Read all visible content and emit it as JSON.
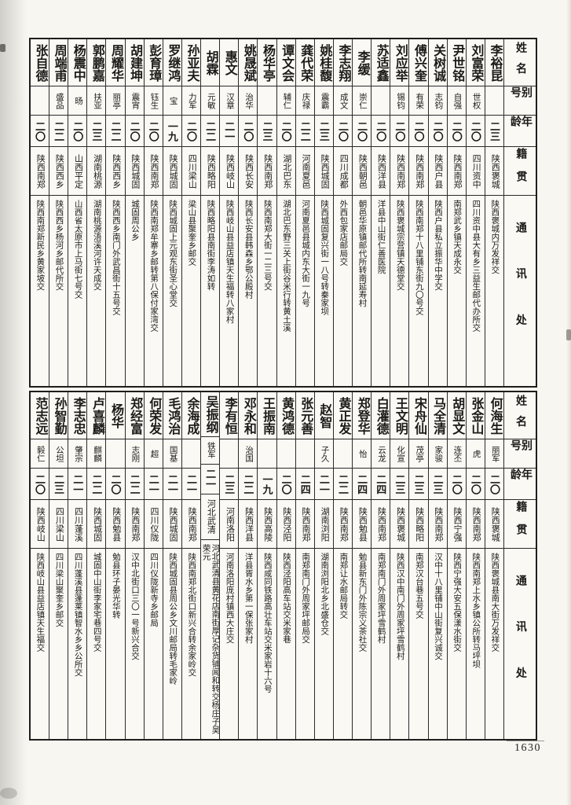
{
  "page": {
    "number": "1630"
  },
  "headers": {
    "name": "姓名",
    "alias": "别号",
    "age": "年龄",
    "origin": "籍贯",
    "address": "通讯处"
  },
  "tables": [
    {
      "entries": [
        {
          "name": "李裕昆",
          "alias": "",
          "age": "二三",
          "origin": "陕西褒城",
          "address": "陕西褒城内万发祥交"
        },
        {
          "name": "刘富荣",
          "alias": "世权",
          "age": "二〇",
          "origin": "四川资中",
          "address": "四川资中县大有乡三益生邮代办所交"
        },
        {
          "name": "尹世铭",
          "alias": "自强",
          "age": "二〇",
          "origin": "陕西南郑",
          "address": "南郑武乡镇天成永交"
        },
        {
          "name": "关树诚",
          "alias": "志钧",
          "age": "二〇",
          "origin": "陕西户县",
          "address": "陕西户县私立振华中学交"
        },
        {
          "name": "傅兴奎",
          "alias": "有荣",
          "age": "二〇",
          "origin": "陕西南郑",
          "address": "陕西南郑十八里铺东街九〇号交"
        },
        {
          "name": "刘应举",
          "alias": "锡钧",
          "age": "二〇",
          "origin": "陕西南郑",
          "address": "陕西褒城宗营镇天德堂交"
        },
        {
          "name": "苏适鑫",
          "alias": "",
          "age": "二〇",
          "origin": "陕西洋县",
          "address": "洋县中山街仁善医院"
        },
        {
          "name": "李缓",
          "alias": "崇仁",
          "age": "二〇",
          "origin": "陕西朝邑",
          "address": "朝邑华原镇邮代所转南延寿村"
        },
        {
          "name": "李志翔",
          "alias": "成文",
          "age": "二〇",
          "origin": "四川成都",
          "address": "外西包家店邮局交"
        },
        {
          "name": "姚桂馥",
          "alias": "震霸",
          "age": "二三",
          "origin": "陕西城固",
          "address": "陕西城固复兴街一八号转秦家坝"
        },
        {
          "name": "龚代荣",
          "alias": "庆禄",
          "age": "二二",
          "origin": "河南夏邑",
          "address": "河南夏邑县城内东大街一九号"
        },
        {
          "name": "谭文会",
          "alias": "辅仁",
          "age": "二〇",
          "origin": "湖北巴东",
          "address": "湖北巴东野三关上街谷米行转黄土溪"
        },
        {
          "name": "杨华亭",
          "alias": "",
          "age": "二三",
          "origin": "陕西南郑",
          "address": "陕西南郑大街一二三号交"
        },
        {
          "name": "姚晟斌",
          "alias": "治华",
          "age": "二〇",
          "origin": "陕西长安",
          "address": "陕西长安县韩森乡鄂公殿村"
        },
        {
          "name": "惠文",
          "alias": "汉章",
          "age": "二一",
          "origin": "陕西岐山",
          "address": "陕西岐山县益店镇天生福转八家村"
        },
        {
          "name": "胡霖",
          "alias": "元敏",
          "age": "二二",
          "origin": "陕西略阳",
          "address": "陕西略阳县南街李涛如转"
        },
        {
          "name": "孙亚夫",
          "alias": "力军",
          "age": "二〇",
          "origin": "四川梁山",
          "address": "梁山县聚奎乡邮交"
        },
        {
          "name": "罗继鸿",
          "alias": "宝",
          "age": "一九",
          "origin": "陕西城固",
          "address": "陕西城固上元观东街圣心堂交"
        },
        {
          "name": "彭育璋",
          "alias": "钰生",
          "age": "二〇",
          "origin": "陕西南郑",
          "address": "陕西南郑牟寨乡邮转第八保付家湾交"
        },
        {
          "name": "胡建坤",
          "alias": "震宵",
          "age": "二〇",
          "origin": "陕西城固",
          "address": "城固周公乡"
        },
        {
          "name": "周耀华",
          "alias": "丽亭",
          "age": "二二",
          "origin": "陕西西乡",
          "address": "陕西西乡南门外武昌街十五号交"
        },
        {
          "name": "郭鹏嘉",
          "alias": "扶亚",
          "age": "二三",
          "origin": "湖南桃源",
          "address": "湖南桃源浯溪河许天成交"
        },
        {
          "name": "杨震中",
          "alias": "旸",
          "age": "二〇",
          "origin": "山西平定",
          "address": "山西省太原市上马街七号交"
        },
        {
          "name": "周端甫",
          "alias": "盛品",
          "age": "二二",
          "origin": "陕西西乡",
          "address": "陕西西乡杨河乡邮代所交"
        },
        {
          "name": "张自德",
          "alias": "",
          "age": "二〇",
          "origin": "陕西南郑",
          "address": "陕西南郑新民乡黄家坡交"
        }
      ]
    },
    {
      "entries": [
        {
          "name": "何海生",
          "alias": "丽军",
          "age": "二〇",
          "origin": "陕西褒城",
          "address": "陕西褒城县南大街万发祥交"
        },
        {
          "name": "张金山",
          "alias": "虎",
          "age": "二〇",
          "origin": "陕西南郑",
          "address": "陕西南郑上水乡镇公所转马坪坝"
        },
        {
          "name": "胡显文",
          "alias": "连丕",
          "age": "二〇",
          "origin": "陕西宁强",
          "address": "陕西宁强大安五保漾水街交"
        },
        {
          "name": "马全清",
          "alias": "家骏",
          "age": "二三",
          "origin": "陕西南郑",
          "address": "汉中十八里铺中山街复兴诚交"
        },
        {
          "name": "宋舟仙",
          "alias": "茂亭",
          "age": "二三",
          "origin": "陕西略阳",
          "address": "南郑汉台巷五号交"
        },
        {
          "name": "王文明",
          "alias": "化宣",
          "age": "二三",
          "origin": "陕西褒城",
          "address": "陕西汉中南门外周家坪雪鹤村"
        },
        {
          "name": "白灌德",
          "alias": "云龙",
          "age": "二四",
          "origin": "陕西南郑",
          "address": "南郑南门外周家坪雪鹤村"
        },
        {
          "name": "郑登华",
          "alias": "怡",
          "age": "二四",
          "origin": "陕西勉县",
          "address": "勉县新东门外陈宗义茶社交"
        },
        {
          "name": "黄正发",
          "alias": "",
          "age": "二二",
          "origin": "陕西南郑",
          "address": "南郑让水邮局转交"
        },
        {
          "name": "赵智",
          "alias": "子久",
          "age": "二一",
          "origin": "湖南浏阳",
          "address": "湖南浏阳北乡北盛仓交"
        },
        {
          "name": "张元善",
          "alias": "",
          "age": "二四",
          "origin": "陕西南郑",
          "address": "南郑南门外周家坪邮局交"
        },
        {
          "name": "黄鸿德",
          "alias": "",
          "age": "二〇",
          "origin": "陕西泾阳",
          "address": "陕西泾阳高车站交米家巷"
        },
        {
          "name": "王振南",
          "alias": "",
          "age": "一九",
          "origin": "陕西高陵",
          "address": "陕西咸同铁路高壮车站交米家岩十六号"
        },
        {
          "name": "邓永和",
          "alias": "治国",
          "age": "二二",
          "origin": "陕西洋县",
          "address": "洋县胥水乡第一保张家村"
        },
        {
          "name": "李有恒",
          "alias": "",
          "age": "二三",
          "origin": "河南洛阳",
          "address": "河南洛阳庞村镇西大庄交"
        },
        {
          "name": "吴振纲",
          "alias": "铁军",
          "age": "二一",
          "origin": "河北武清",
          "address": "河北武清县黄花店南街厚记杂货铺闻和转交杨庄子吴荣元"
        },
        {
          "name": "余海成",
          "alias": "",
          "age": "二一",
          "origin": "陕西南郑",
          "address": "陕西南郑北街口新兴合转余家岭交"
        },
        {
          "name": "毛鸿治",
          "alias": "国基",
          "age": "二一",
          "origin": "陕西城固",
          "address": "陕西城固县周公乡文川邮局转毛家岭"
        },
        {
          "name": "何荣发",
          "alias": "超",
          "age": "二一",
          "origin": "四川仪陇",
          "address": "四川仪陇新寺乡邮局"
        },
        {
          "name": "郑经富",
          "alias": "志刚",
          "age": "二二",
          "origin": "陕西南郑",
          "address": "汉中北街口三〇一号新兴合交"
        },
        {
          "name": "杨华",
          "alias": "",
          "age": "二〇",
          "origin": "陕西勉县",
          "address": "勉县环子晏光华转"
        },
        {
          "name": "卢喜麟",
          "alias": "麒麟",
          "age": "二二",
          "origin": "陕西城固",
          "address": "城固中山街李家宅巷四号交"
        },
        {
          "name": "李志忠",
          "alias": "肇宗",
          "age": "二一",
          "origin": "四川蓬溪",
          "address": "四川蓬溪县蓬莱镇智水乡乡公所交"
        },
        {
          "name": "孙智勤",
          "alias": "公坦",
          "age": "二三",
          "origin": "四川梁山",
          "address": "四川梁山聚奎乡邮交"
        },
        {
          "name": "范志远",
          "alias": "毅仁",
          "age": "二〇",
          "origin": "陕西岐山",
          "address": "陕西岐山县益店镇天生福交"
        }
      ]
    }
  ]
}
